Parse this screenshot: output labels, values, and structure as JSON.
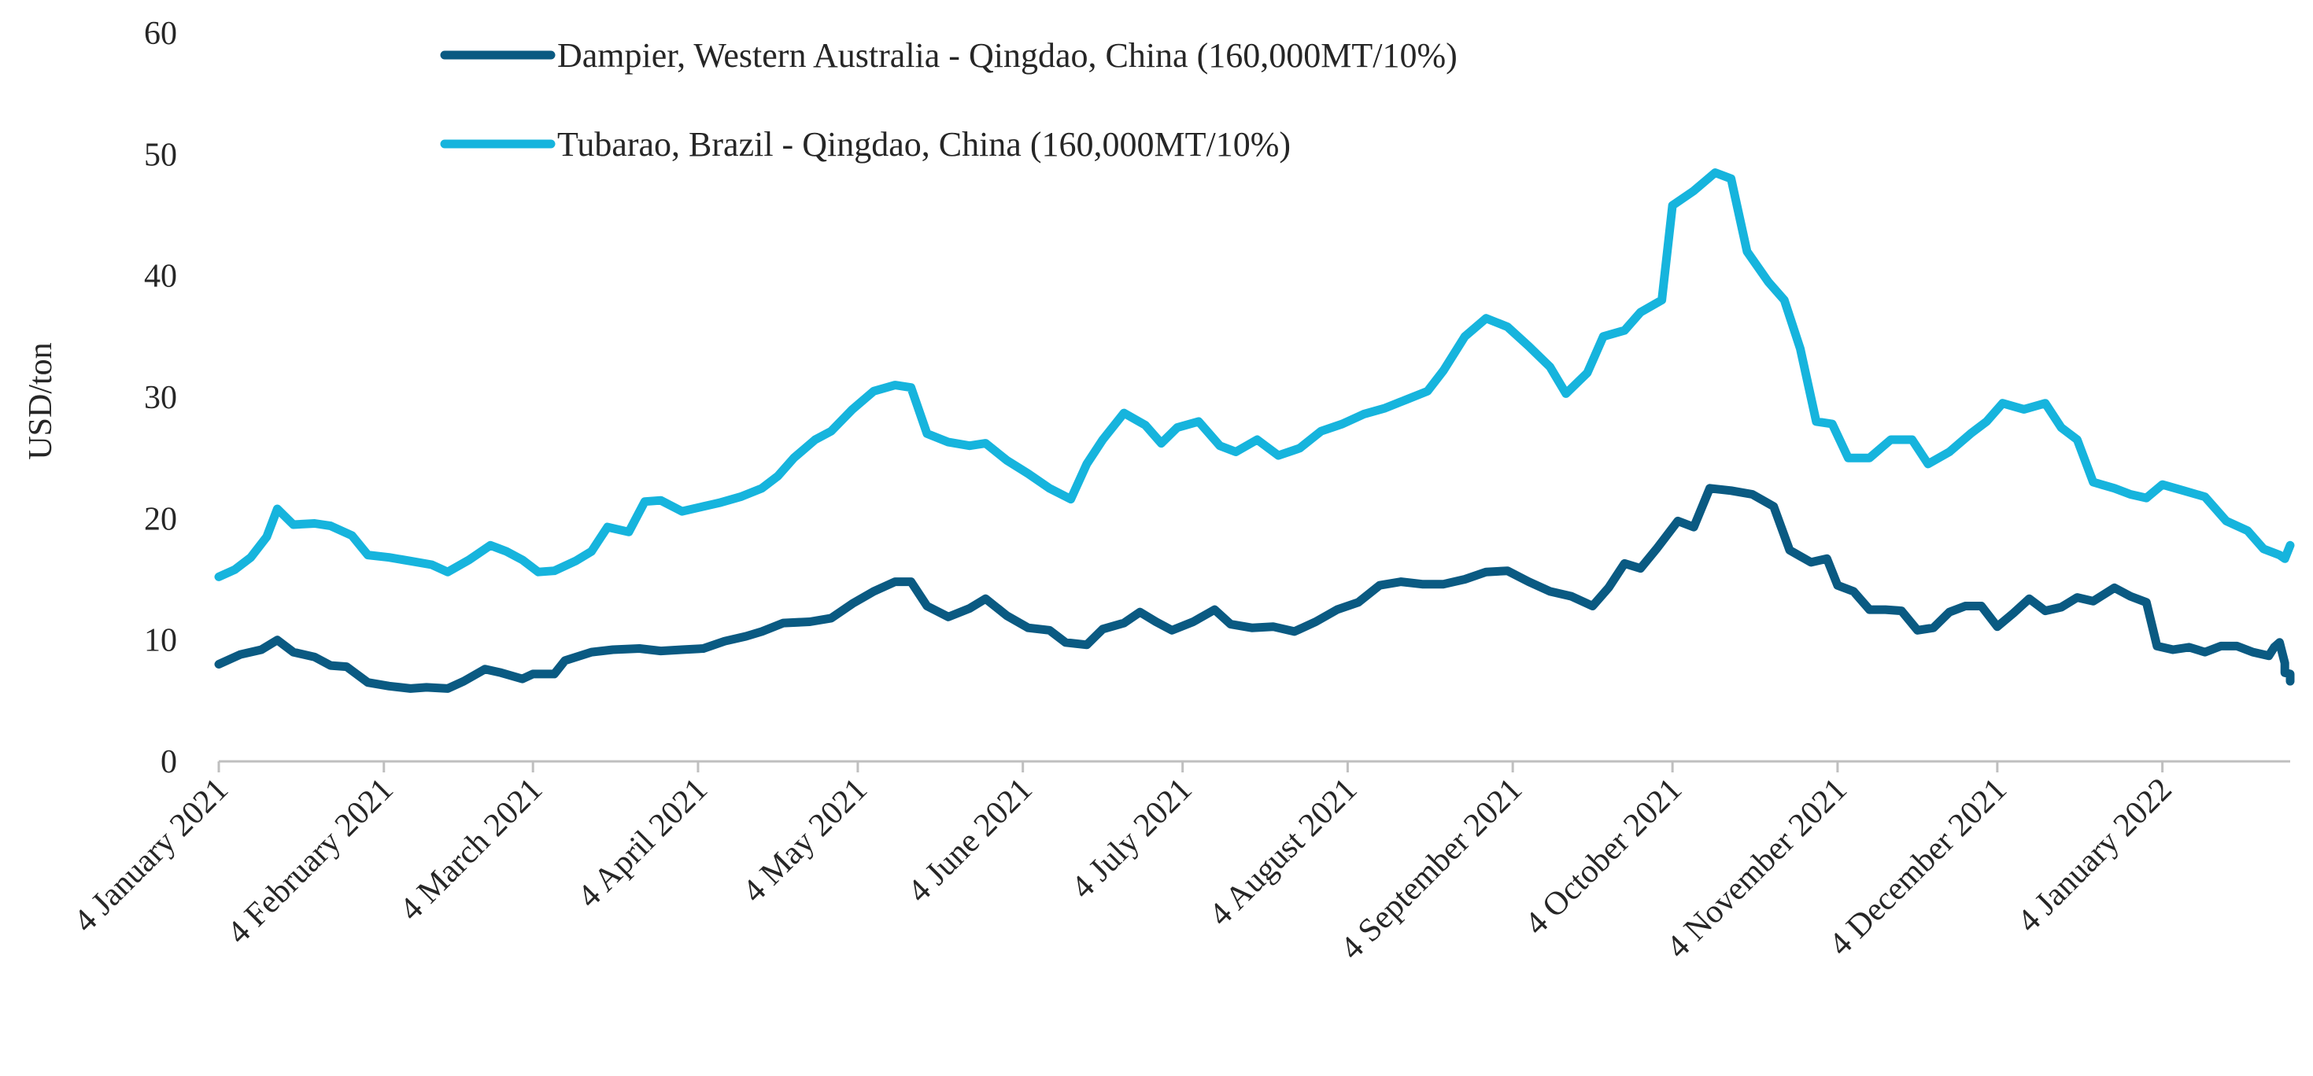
{
  "chart_data": {
    "type": "line",
    "title": "",
    "ylabel": "USD/ton",
    "xlabel": "",
    "ylim": [
      0,
      60
    ],
    "yticks": [
      0,
      10,
      20,
      30,
      40,
      50,
      60
    ],
    "xticks": [
      "2021-01-04",
      "2021-02-04",
      "2021-03-04",
      "2021-04-04",
      "2021-05-04",
      "2021-06-04",
      "2021-07-04",
      "2021-08-04",
      "2021-09-04",
      "2021-10-04",
      "2021-11-04",
      "2021-12-04",
      "2022-01-04"
    ],
    "xtick_labels": [
      "4 January 2021",
      "4 February 2021",
      "4 March 2021",
      "4 April 2021",
      "4 May 2021",
      "4 June 2021",
      "4 July 2021",
      "4 August 2021",
      "4 September 2021",
      "4 October 2021",
      "4 November 2021",
      "4 December 2021",
      "4 January 2022"
    ],
    "xlim": [
      "2021-01-04",
      "2022-01-28"
    ],
    "grid": false,
    "legend_position": "top",
    "series": [
      {
        "name": "Dampier, Western Australia - Qingdao, China (160,000MT/10%)",
        "color": "#0a5a82",
        "points": [
          [
            "2021-01-04",
            8.0
          ],
          [
            "2021-01-08",
            8.8
          ],
          [
            "2021-01-12",
            9.2
          ],
          [
            "2021-01-15",
            10.0
          ],
          [
            "2021-01-18",
            9.0
          ],
          [
            "2021-01-22",
            8.6
          ],
          [
            "2021-01-25",
            7.9
          ],
          [
            "2021-01-28",
            7.8
          ],
          [
            "2021-02-01",
            6.5
          ],
          [
            "2021-02-05",
            6.2
          ],
          [
            "2021-02-09",
            6.0
          ],
          [
            "2021-02-12",
            6.1
          ],
          [
            "2021-02-16",
            6.0
          ],
          [
            "2021-02-19",
            6.6
          ],
          [
            "2021-02-23",
            7.6
          ],
          [
            "2021-02-26",
            7.3
          ],
          [
            "2021-03-02",
            6.8
          ],
          [
            "2021-03-04",
            7.2
          ],
          [
            "2021-03-08",
            7.2
          ],
          [
            "2021-03-10",
            8.3
          ],
          [
            "2021-03-15",
            9.0
          ],
          [
            "2021-03-19",
            9.2
          ],
          [
            "2021-03-24",
            9.3
          ],
          [
            "2021-03-28",
            9.1
          ],
          [
            "2021-04-01",
            9.2
          ],
          [
            "2021-04-05",
            9.3
          ],
          [
            "2021-04-09",
            9.9
          ],
          [
            "2021-04-13",
            10.3
          ],
          [
            "2021-04-16",
            10.7
          ],
          [
            "2021-04-20",
            11.4
          ],
          [
            "2021-04-25",
            11.5
          ],
          [
            "2021-04-29",
            11.8
          ],
          [
            "2021-05-03",
            13.0
          ],
          [
            "2021-05-07",
            14.0
          ],
          [
            "2021-05-11",
            14.8
          ],
          [
            "2021-05-14",
            14.8
          ],
          [
            "2021-05-17",
            12.8
          ],
          [
            "2021-05-21",
            11.9
          ],
          [
            "2021-05-25",
            12.6
          ],
          [
            "2021-05-28",
            13.4
          ],
          [
            "2021-06-01",
            12.0
          ],
          [
            "2021-06-05",
            11.0
          ],
          [
            "2021-06-09",
            10.8
          ],
          [
            "2021-06-12",
            9.8
          ],
          [
            "2021-06-16",
            9.6
          ],
          [
            "2021-06-19",
            10.9
          ],
          [
            "2021-06-23",
            11.4
          ],
          [
            "2021-06-26",
            12.3
          ],
          [
            "2021-06-29",
            11.5
          ],
          [
            "2021-07-02",
            10.8
          ],
          [
            "2021-07-06",
            11.5
          ],
          [
            "2021-07-10",
            12.5
          ],
          [
            "2021-07-13",
            11.3
          ],
          [
            "2021-07-17",
            11.0
          ],
          [
            "2021-07-21",
            11.1
          ],
          [
            "2021-07-25",
            10.7
          ],
          [
            "2021-07-29",
            11.5
          ],
          [
            "2021-08-02",
            12.5
          ],
          [
            "2021-08-06",
            13.1
          ],
          [
            "2021-08-10",
            14.5
          ],
          [
            "2021-08-14",
            14.8
          ],
          [
            "2021-08-18",
            14.6
          ],
          [
            "2021-08-22",
            14.6
          ],
          [
            "2021-08-26",
            15.0
          ],
          [
            "2021-08-30",
            15.6
          ],
          [
            "2021-09-03",
            15.7
          ],
          [
            "2021-09-07",
            14.8
          ],
          [
            "2021-09-11",
            14.0
          ],
          [
            "2021-09-15",
            13.6
          ],
          [
            "2021-09-19",
            12.8
          ],
          [
            "2021-09-22",
            14.3
          ],
          [
            "2021-09-25",
            16.3
          ],
          [
            "2021-09-28",
            15.9
          ],
          [
            "2021-10-01",
            17.5
          ],
          [
            "2021-10-05",
            19.8
          ],
          [
            "2021-10-08",
            19.3
          ],
          [
            "2021-10-11",
            22.5
          ],
          [
            "2021-10-15",
            22.3
          ],
          [
            "2021-10-19",
            22.0
          ],
          [
            "2021-10-23",
            21.0
          ],
          [
            "2021-10-26",
            17.4
          ],
          [
            "2021-10-30",
            16.4
          ],
          [
            "2021-11-02",
            16.7
          ],
          [
            "2021-11-04",
            14.5
          ],
          [
            "2021-11-07",
            14.0
          ],
          [
            "2021-11-10",
            12.5
          ],
          [
            "2021-11-13",
            12.5
          ],
          [
            "2021-11-16",
            12.4
          ],
          [
            "2021-11-19",
            10.8
          ],
          [
            "2021-11-22",
            11.0
          ],
          [
            "2021-11-25",
            12.3
          ],
          [
            "2021-11-28",
            12.8
          ],
          [
            "2021-12-01",
            12.8
          ],
          [
            "2021-12-04",
            11.1
          ],
          [
            "2021-12-07",
            12.2
          ],
          [
            "2021-12-10",
            13.4
          ],
          [
            "2021-12-13",
            12.4
          ],
          [
            "2021-12-16",
            12.7
          ],
          [
            "2021-12-19",
            13.5
          ],
          [
            "2021-12-22",
            13.2
          ],
          [
            "2021-12-26",
            14.3
          ],
          [
            "2021-12-29",
            13.6
          ],
          [
            "2022-01-01",
            13.1
          ],
          [
            "2022-01-03",
            9.5
          ],
          [
            "2022-01-06",
            9.2
          ],
          [
            "2022-01-09",
            9.4
          ],
          [
            "2022-01-12",
            9.0
          ],
          [
            "2022-01-15",
            9.5
          ],
          [
            "2022-01-18",
            9.5
          ],
          [
            "2022-01-21",
            9.0
          ],
          [
            "2022-01-24",
            8.7
          ],
          [
            "2022-01-25",
            9.4
          ],
          [
            "2022-01-26",
            9.8
          ],
          [
            "2022-01-27",
            8.1
          ],
          [
            "2022-01-27",
            7.3
          ],
          [
            "2022-01-28",
            7.2
          ],
          [
            "2022-01-28",
            6.6
          ],
          [
            "2022-01-28",
            6.8
          ]
        ]
      },
      {
        "name": "Tubarao, Brazil - Qingdao, China (160,000MT/10%)",
        "color": "#16b4dd",
        "points": [
          [
            "2021-01-04",
            15.2
          ],
          [
            "2021-01-07",
            15.8
          ],
          [
            "2021-01-10",
            16.8
          ],
          [
            "2021-01-13",
            18.5
          ],
          [
            "2021-01-15",
            20.8
          ],
          [
            "2021-01-18",
            19.5
          ],
          [
            "2021-01-22",
            19.6
          ],
          [
            "2021-01-25",
            19.4
          ],
          [
            "2021-01-29",
            18.6
          ],
          [
            "2021-02-01",
            17.0
          ],
          [
            "2021-02-05",
            16.8
          ],
          [
            "2021-02-09",
            16.5
          ],
          [
            "2021-02-13",
            16.2
          ],
          [
            "2021-02-16",
            15.6
          ],
          [
            "2021-02-20",
            16.6
          ],
          [
            "2021-02-24",
            17.8
          ],
          [
            "2021-02-27",
            17.3
          ],
          [
            "2021-03-02",
            16.6
          ],
          [
            "2021-03-05",
            15.6
          ],
          [
            "2021-03-08",
            15.7
          ],
          [
            "2021-03-12",
            16.5
          ],
          [
            "2021-03-15",
            17.3
          ],
          [
            "2021-03-18",
            19.3
          ],
          [
            "2021-03-22",
            18.9
          ],
          [
            "2021-03-25",
            21.4
          ],
          [
            "2021-03-28",
            21.5
          ],
          [
            "2021-04-01",
            20.6
          ],
          [
            "2021-04-05",
            21.0
          ],
          [
            "2021-04-08",
            21.3
          ],
          [
            "2021-04-12",
            21.8
          ],
          [
            "2021-04-16",
            22.5
          ],
          [
            "2021-04-19",
            23.5
          ],
          [
            "2021-04-22",
            25.0
          ],
          [
            "2021-04-26",
            26.5
          ],
          [
            "2021-04-29",
            27.2
          ],
          [
            "2021-05-03",
            29.0
          ],
          [
            "2021-05-07",
            30.5
          ],
          [
            "2021-05-11",
            31.0
          ],
          [
            "2021-05-14",
            30.8
          ],
          [
            "2021-05-17",
            27.0
          ],
          [
            "2021-05-21",
            26.3
          ],
          [
            "2021-05-25",
            26.0
          ],
          [
            "2021-05-28",
            26.2
          ],
          [
            "2021-06-01",
            24.8
          ],
          [
            "2021-06-05",
            23.7
          ],
          [
            "2021-06-09",
            22.5
          ],
          [
            "2021-06-13",
            21.6
          ],
          [
            "2021-06-16",
            24.5
          ],
          [
            "2021-06-19",
            26.5
          ],
          [
            "2021-06-23",
            28.7
          ],
          [
            "2021-06-27",
            27.7
          ],
          [
            "2021-06-30",
            26.2
          ],
          [
            "2021-07-03",
            27.5
          ],
          [
            "2021-07-07",
            28.0
          ],
          [
            "2021-07-11",
            26.0
          ],
          [
            "2021-07-14",
            25.5
          ],
          [
            "2021-07-18",
            26.5
          ],
          [
            "2021-07-22",
            25.2
          ],
          [
            "2021-07-26",
            25.8
          ],
          [
            "2021-07-30",
            27.2
          ],
          [
            "2021-08-03",
            27.8
          ],
          [
            "2021-08-07",
            28.6
          ],
          [
            "2021-08-11",
            29.1
          ],
          [
            "2021-08-15",
            29.8
          ],
          [
            "2021-08-19",
            30.5
          ],
          [
            "2021-08-22",
            32.2
          ],
          [
            "2021-08-26",
            35.0
          ],
          [
            "2021-08-30",
            36.5
          ],
          [
            "2021-09-03",
            35.8
          ],
          [
            "2021-09-07",
            34.2
          ],
          [
            "2021-09-11",
            32.5
          ],
          [
            "2021-09-14",
            30.3
          ],
          [
            "2021-09-18",
            32.0
          ],
          [
            "2021-09-21",
            35.0
          ],
          [
            "2021-09-25",
            35.5
          ],
          [
            "2021-09-28",
            37.0
          ],
          [
            "2021-10-02",
            38.0
          ],
          [
            "2021-10-04",
            45.8
          ],
          [
            "2021-10-08",
            47.0
          ],
          [
            "2021-10-12",
            48.5
          ],
          [
            "2021-10-15",
            48.0
          ],
          [
            "2021-10-18",
            42.0
          ],
          [
            "2021-10-22",
            39.5
          ],
          [
            "2021-10-25",
            38.0
          ],
          [
            "2021-10-28",
            34.0
          ],
          [
            "2021-10-31",
            28.0
          ],
          [
            "2021-11-03",
            27.8
          ],
          [
            "2021-11-06",
            25.0
          ],
          [
            "2021-11-10",
            25.0
          ],
          [
            "2021-11-14",
            26.5
          ],
          [
            "2021-11-18",
            26.5
          ],
          [
            "2021-11-21",
            24.5
          ],
          [
            "2021-11-25",
            25.5
          ],
          [
            "2021-11-29",
            27.0
          ],
          [
            "2021-12-02",
            28.0
          ],
          [
            "2021-12-05",
            29.5
          ],
          [
            "2021-12-09",
            29.0
          ],
          [
            "2021-12-13",
            29.5
          ],
          [
            "2021-12-16",
            27.5
          ],
          [
            "2021-12-19",
            26.5
          ],
          [
            "2021-12-22",
            23.0
          ],
          [
            "2021-12-26",
            22.5
          ],
          [
            "2021-12-29",
            22.0
          ],
          [
            "2022-01-01",
            21.7
          ],
          [
            "2022-01-04",
            22.8
          ],
          [
            "2022-01-08",
            22.3
          ],
          [
            "2022-01-12",
            21.8
          ],
          [
            "2022-01-16",
            19.8
          ],
          [
            "2022-01-20",
            19.0
          ],
          [
            "2022-01-23",
            17.5
          ],
          [
            "2022-01-26",
            17.0
          ],
          [
            "2022-01-27",
            16.7
          ],
          [
            "2022-01-28",
            17.8
          ]
        ]
      }
    ]
  }
}
